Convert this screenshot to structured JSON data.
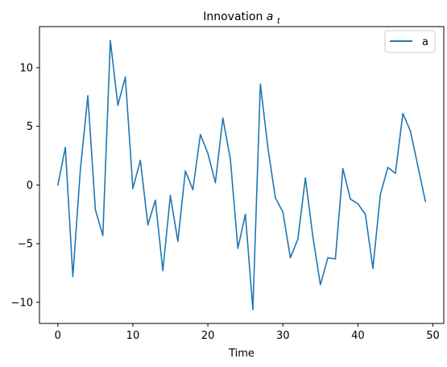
{
  "chart_data": {
    "type": "line",
    "title": "Innovation",
    "title_symbol": "a",
    "title_subscript": "t",
    "xlabel": "Time",
    "ylabel": "",
    "xlim": [
      -2.45,
      51.45
    ],
    "ylim": [
      -11.8,
      13.5
    ],
    "xticks": [
      0,
      10,
      20,
      30,
      40,
      50
    ],
    "yticks": [
      -10,
      -5,
      0,
      5,
      10
    ],
    "ytick_labels": [
      "−10",
      "−5",
      "0",
      "5",
      "10"
    ],
    "grid": false,
    "legend_position": "top-right",
    "series": [
      {
        "name": "a",
        "color": "#1f77b4",
        "x": [
          0,
          1,
          2,
          3,
          4,
          5,
          6,
          7,
          8,
          9,
          10,
          11,
          12,
          13,
          14,
          15,
          16,
          17,
          18,
          19,
          20,
          21,
          22,
          23,
          24,
          25,
          26,
          27,
          28,
          29,
          30,
          31,
          32,
          33,
          34,
          35,
          36,
          37,
          38,
          39,
          40,
          41,
          42,
          43,
          44,
          45,
          46,
          47,
          48,
          49
        ],
        "values": [
          0,
          3.2,
          -7.8,
          1.3,
          7.6,
          -2.1,
          -4.3,
          12.3,
          6.8,
          9.2,
          -0.3,
          2.1,
          -3.4,
          -1.3,
          -7.3,
          -0.9,
          -4.8,
          1.2,
          -0.4,
          4.3,
          2.7,
          0.2,
          5.7,
          2.2,
          -5.4,
          -2.5,
          -10.6,
          8.6,
          3.2,
          -1.1,
          -2.3,
          -6.2,
          -4.6,
          0.6,
          -4.4,
          -8.5,
          -6.2,
          -6.3,
          1.4,
          -1.2,
          -1.6,
          -2.5,
          -7.1,
          -0.8,
          1.5,
          1.0,
          6.1,
          4.6,
          1.6,
          -1.4
        ]
      }
    ]
  }
}
